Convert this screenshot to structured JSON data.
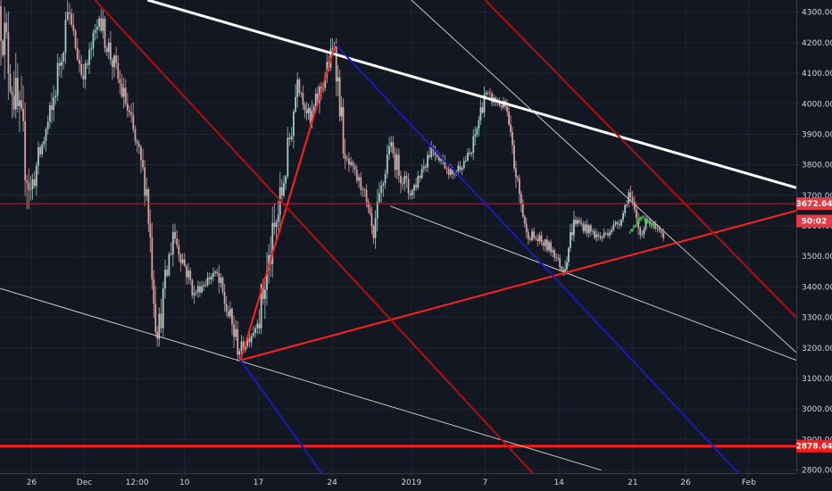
{
  "chart_data": {
    "type": "candlestick",
    "symbol_note": "",
    "y_axis": {
      "ticks": [
        2800,
        2900,
        3000,
        3100,
        3200,
        3300,
        3400,
        3500,
        3600,
        3700,
        3800,
        3900,
        4000,
        4100,
        4200,
        4300
      ],
      "tick_labels": [
        "2800.00",
        "2900.00",
        "3000.00",
        "3100.00",
        "3200.00",
        "3300.00",
        "3400.00",
        "3500.00",
        "3600.00",
        "3700.00",
        "3800.00",
        "3900.00",
        "4000.00",
        "4100.00",
        "4200.00",
        "4300.00"
      ],
      "range": [
        2790,
        4340
      ]
    },
    "x_axis": {
      "ticks": [
        {
          "label": "26",
          "t": 3
        },
        {
          "label": "Dec",
          "t": 8
        },
        {
          "label": "12:00",
          "t": 13
        },
        {
          "label": "10",
          "t": 17.5
        },
        {
          "label": "17",
          "t": 24.5
        },
        {
          "label": "24",
          "t": 31.5
        },
        {
          "label": "2019",
          "t": 39
        },
        {
          "label": "7",
          "t": 46
        },
        {
          "label": "14",
          "t": 53
        },
        {
          "label": "21",
          "t": 60
        },
        {
          "label": "26",
          "t": 65
        },
        {
          "label": "Feb",
          "t": 71
        }
      ],
      "range": [
        0,
        75.5
      ]
    },
    "price_tags": [
      {
        "label": "3672.64",
        "value": 3672.64,
        "color": "#e63946"
      },
      {
        "label": "50:02",
        "value": 3616,
        "color": "#e63946"
      },
      {
        "label": "2878.64",
        "value": 2878.64,
        "color": "#ff1a1a"
      }
    ],
    "horizontal_lines": [
      {
        "value": 3672.64,
        "color": "#a02b33",
        "width": 1
      },
      {
        "value": 2878.64,
        "color": "#ff1a1a",
        "width": 3
      }
    ],
    "trend_lines": [
      {
        "t1": 14,
        "v1": 4340,
        "t2": 75.5,
        "v2": 3725,
        "color": "#ffffff",
        "width": 3
      },
      {
        "t1": 0,
        "v1": 3395,
        "t2": 57,
        "v2": 2800,
        "color": "#c8c8c8",
        "width": 1
      },
      {
        "t1": 37,
        "v1": 3665,
        "t2": 75.5,
        "v2": 3160,
        "color": "#c8c8c8",
        "width": 1
      },
      {
        "t1": 39,
        "v1": 4340,
        "t2": 75.5,
        "v2": 3185,
        "color": "#c8c8c8",
        "width": 1
      },
      {
        "t1": 22.8,
        "v1": 3160,
        "t2": 75.5,
        "v2": 3650,
        "color": "#ff2020",
        "width": 2
      },
      {
        "t1": 22.8,
        "v1": 3160,
        "t2": 31.8,
        "v2": 4195,
        "color": "#ff2020",
        "width": 2
      },
      {
        "t1": 31.8,
        "v1": 4195,
        "t2": 70,
        "v2": 2790,
        "color": "#1a1ab4",
        "width": 2
      },
      {
        "t1": 22.8,
        "v1": 3160,
        "t2": 30.5,
        "v2": 2790,
        "color": "#1a1ab4",
        "width": 2
      },
      {
        "t1": 9,
        "v1": 4340,
        "t2": 50.5,
        "v2": 2790,
        "color": "#b01010",
        "width": 2
      },
      {
        "t1": 46,
        "v1": 4340,
        "t2": 75.5,
        "v2": 3300,
        "color": "#b01010",
        "width": 2
      }
    ],
    "series": [
      {
        "name": "",
        "color_up": "#26a69a",
        "color_down": "#ef5350",
        "segments": [
          {
            "t1": 0,
            "t2": 3,
            "start": 4320,
            "end": 3720,
            "lo": 3660,
            "hi": 4350
          },
          {
            "t1": 3,
            "t2": 5,
            "start": 3720,
            "end": 3980,
            "lo": 3700,
            "hi": 4050
          },
          {
            "t1": 5,
            "t2": 6.5,
            "start": 3980,
            "end": 4300,
            "lo": 3950,
            "hi": 4360
          },
          {
            "t1": 6.5,
            "t2": 8,
            "start": 4300,
            "end": 4080,
            "lo": 4050,
            "hi": 4340
          },
          {
            "t1": 8,
            "t2": 9.5,
            "start": 4080,
            "end": 4280,
            "lo": 4050,
            "hi": 4300
          },
          {
            "t1": 9.5,
            "t2": 12,
            "start": 4280,
            "end": 4000,
            "lo": 3980,
            "hi": 4300
          },
          {
            "t1": 12,
            "t2": 14,
            "start": 4000,
            "end": 3720,
            "lo": 3680,
            "hi": 4020
          },
          {
            "t1": 14,
            "t2": 15,
            "start": 3720,
            "end": 3230,
            "lo": 3220,
            "hi": 3740
          },
          {
            "t1": 15,
            "t2": 16.5,
            "start": 3230,
            "end": 3580,
            "lo": 3220,
            "hi": 3620
          },
          {
            "t1": 16.5,
            "t2": 18.5,
            "start": 3580,
            "end": 3380,
            "lo": 3360,
            "hi": 3600
          },
          {
            "t1": 18.5,
            "t2": 20.5,
            "start": 3380,
            "end": 3450,
            "lo": 3350,
            "hi": 3480
          },
          {
            "t1": 20.5,
            "t2": 22.8,
            "start": 3450,
            "end": 3190,
            "lo": 3160,
            "hi": 3460
          },
          {
            "t1": 22.8,
            "t2": 24.5,
            "start": 3190,
            "end": 3280,
            "lo": 3160,
            "hi": 3320
          },
          {
            "t1": 24.5,
            "t2": 27,
            "start": 3280,
            "end": 3740,
            "lo": 3260,
            "hi": 3780
          },
          {
            "t1": 27,
            "t2": 28.3,
            "start": 3740,
            "end": 4080,
            "lo": 3720,
            "hi": 4120
          },
          {
            "t1": 28.3,
            "t2": 29.5,
            "start": 4080,
            "end": 3940,
            "lo": 3900,
            "hi": 4100
          },
          {
            "t1": 29.5,
            "t2": 31.8,
            "start": 3940,
            "end": 4190,
            "lo": 3920,
            "hi": 4200
          },
          {
            "t1": 31.8,
            "t2": 32.8,
            "start": 4190,
            "end": 3820,
            "lo": 3800,
            "hi": 4200
          },
          {
            "t1": 32.8,
            "t2": 34.5,
            "start": 3820,
            "end": 3720,
            "lo": 3680,
            "hi": 3860
          },
          {
            "t1": 34.5,
            "t2": 35.5,
            "start": 3720,
            "end": 3560,
            "lo": 3540,
            "hi": 3740
          },
          {
            "t1": 35.5,
            "t2": 37,
            "start": 3560,
            "end": 3860,
            "lo": 3540,
            "hi": 3890
          },
          {
            "t1": 37,
            "t2": 39,
            "start": 3860,
            "end": 3700,
            "lo": 3640,
            "hi": 3880
          },
          {
            "t1": 39,
            "t2": 41,
            "start": 3700,
            "end": 3860,
            "lo": 3680,
            "hi": 3890
          },
          {
            "t1": 41,
            "t2": 43,
            "start": 3860,
            "end": 3770,
            "lo": 3740,
            "hi": 3880
          },
          {
            "t1": 43,
            "t2": 44.8,
            "start": 3770,
            "end": 3840,
            "lo": 3750,
            "hi": 3870
          },
          {
            "t1": 44.8,
            "t2": 46,
            "start": 3840,
            "end": 4030,
            "lo": 3830,
            "hi": 4060
          },
          {
            "t1": 46,
            "t2": 48,
            "start": 4030,
            "end": 3990,
            "lo": 3950,
            "hi": 4070
          },
          {
            "t1": 48,
            "t2": 49,
            "start": 3990,
            "end": 3760,
            "lo": 3720,
            "hi": 4000
          },
          {
            "t1": 49,
            "t2": 50,
            "start": 3760,
            "end": 3580,
            "lo": 3560,
            "hi": 3780
          },
          {
            "t1": 50,
            "t2": 52.5,
            "start": 3580,
            "end": 3520,
            "lo": 3480,
            "hi": 3620
          },
          {
            "t1": 52.5,
            "t2": 53.5,
            "start": 3520,
            "end": 3450,
            "lo": 3440,
            "hi": 3540
          },
          {
            "t1": 53.5,
            "t2": 54.5,
            "start": 3450,
            "end": 3620,
            "lo": 3440,
            "hi": 3660
          },
          {
            "t1": 54.5,
            "t2": 57,
            "start": 3620,
            "end": 3560,
            "lo": 3530,
            "hi": 3650
          },
          {
            "t1": 57,
            "t2": 59,
            "start": 3560,
            "end": 3620,
            "lo": 3540,
            "hi": 3640
          },
          {
            "t1": 59,
            "t2": 59.7,
            "start": 3620,
            "end": 3710,
            "lo": 3600,
            "hi": 3720
          },
          {
            "t1": 59.7,
            "t2": 60.8,
            "start": 3710,
            "end": 3570,
            "lo": 3560,
            "hi": 3720
          },
          {
            "t1": 60.8,
            "t2": 61.5,
            "start": 3570,
            "end": 3620,
            "lo": 3560,
            "hi": 3640
          },
          {
            "t1": 61.5,
            "t2": 63,
            "start": 3620,
            "end": 3560,
            "lo": 3540,
            "hi": 3630
          }
        ]
      }
    ],
    "projection_path": {
      "color": "#4caf50",
      "points": [
        {
          "t": 59.7,
          "v": 3575
        },
        {
          "t": 60.4,
          "v": 3610
        },
        {
          "t": 60.9,
          "v": 3630
        },
        {
          "t": 61.5,
          "v": 3612
        },
        {
          "t": 62.2,
          "v": 3595
        }
      ]
    }
  }
}
